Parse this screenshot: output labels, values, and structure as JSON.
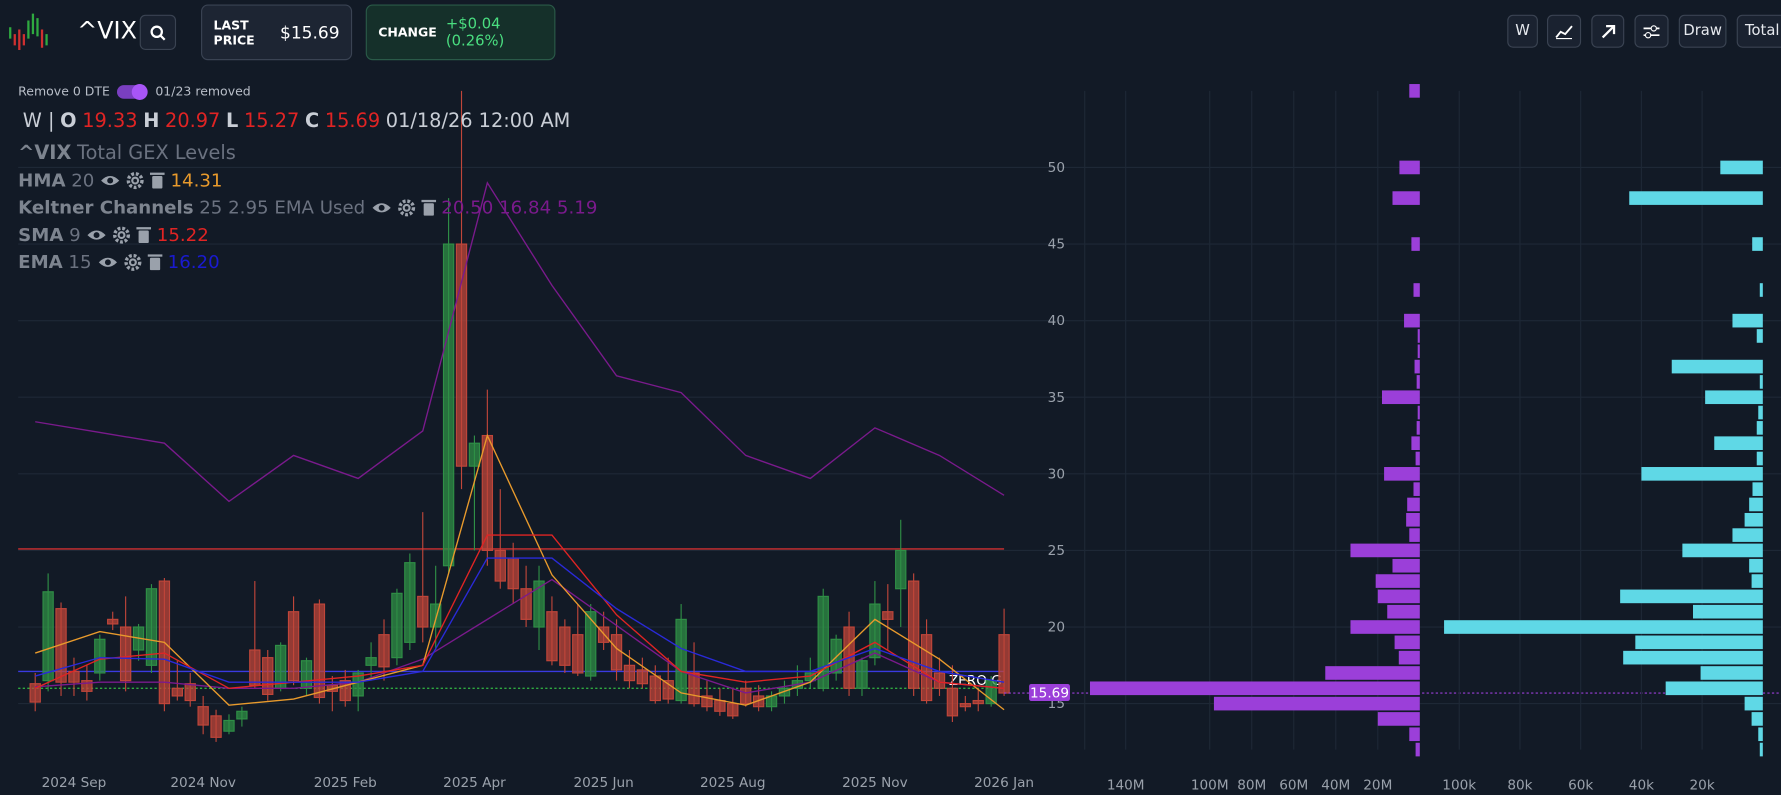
{
  "header": {
    "symbol": "^VIX",
    "last_price_label": "LAST PRICE",
    "last_price": "$15.69",
    "change_label": "CHANGE",
    "change": "+$0.04 (0.26%)",
    "buttons": [
      "W",
      "Draw",
      "Total"
    ],
    "toggle_label": "Remove 0 DTE",
    "removed_note": "01/23 removed"
  },
  "ohlc_legend": {
    "interval": "W |",
    "fields": [
      {
        "label": "O",
        "value": "19.33"
      },
      {
        "label": "H",
        "value": "20.97"
      },
      {
        "label": "L",
        "value": "15.27"
      },
      {
        "label": "C",
        "value": "15.69"
      }
    ],
    "datetime": "01/18/26 12:00 AM"
  },
  "study": {
    "symbol": "^VIX",
    "title": "Total GEX Levels"
  },
  "indicators": [
    {
      "name": "HMA",
      "params": "20",
      "value": "14.31",
      "color": "#e89a2c"
    },
    {
      "name": "Keltner Channels",
      "params": "25 2.95 EMA Used",
      "value": "20.50 16.84 5.19",
      "color": "#7a1a8c"
    },
    {
      "name": "SMA",
      "params": "9",
      "value": "15.22",
      "color": "#e02424"
    },
    {
      "name": "EMA",
      "params": "15",
      "value": "16.20",
      "color": "#1a1ad0"
    }
  ],
  "chart_data": [
    {
      "type": "candlestick",
      "up_color": "#2f8f46",
      "down_color": "#c0463a",
      "categories": [
        null,
        null,
        null,
        "2024 Sep",
        null,
        null,
        null,
        null,
        null,
        null,
        null,
        null,
        null,
        "2024 Nov",
        null,
        null,
        null,
        null,
        null,
        null,
        null,
        null,
        null,
        null,
        "2025 Feb",
        null,
        null,
        null,
        null,
        null,
        null,
        null,
        null,
        null,
        "2025 Apr",
        null,
        null,
        null,
        null,
        null,
        null,
        null,
        null,
        null,
        "2025 Jun",
        null,
        null,
        null,
        null,
        null,
        null,
        null,
        null,
        null,
        "2025 Aug",
        null,
        null,
        null,
        null,
        null,
        null,
        null,
        null,
        null,
        null,
        "2025 Nov",
        null,
        null,
        null,
        null,
        null,
        null,
        null,
        null,
        null,
        "2026 Jan"
      ],
      "open": [
        16.3,
        16.5,
        21.2,
        17.1,
        16.5,
        17.0,
        20.5,
        20.0,
        18.5,
        17.5,
        23.0,
        16.0,
        16.3,
        14.8,
        14.2,
        13.2,
        14.0,
        18.5,
        18.0,
        16.0,
        21.0,
        16.0,
        21.5,
        16.2,
        16.5,
        15.5,
        17.5,
        19.5,
        18.0,
        19.0,
        22.0,
        20.0,
        24.0,
        45.0,
        30.5,
        32.5,
        25.0,
        24.5,
        22.5,
        20.0,
        21.0,
        20.0,
        19.5,
        16.8,
        20.0,
        19.5,
        17.5,
        17.2,
        16.8,
        16.5,
        15.2,
        17.0,
        15.5,
        15.2,
        15.0,
        16.0,
        15.5,
        14.8,
        15.5,
        16.0,
        16.5,
        16.0,
        17.0,
        20.0,
        16.0,
        18.0,
        21.0,
        22.5,
        23.0,
        19.5,
        17.0,
        16.0,
        15.0,
        15.2,
        15.0,
        19.5
      ],
      "high": [
        17.0,
        23.5,
        21.6,
        18.0,
        17.5,
        19.5,
        21.0,
        22.0,
        20.2,
        22.8,
        23.2,
        17.8,
        17.0,
        15.5,
        14.6,
        14.3,
        14.8,
        23.0,
        18.5,
        19.0,
        22.0,
        18.0,
        21.8,
        16.8,
        17.2,
        17.2,
        19.0,
        20.5,
        22.5,
        24.8,
        27.5,
        24.0,
        48.0,
        55.0,
        32.5,
        35.5,
        29.0,
        25.5,
        24.0,
        24.0,
        22.0,
        20.5,
        21.5,
        21.5,
        21.0,
        20.5,
        18.5,
        18.0,
        17.5,
        18.0,
        21.5,
        19.0,
        16.5,
        16.0,
        16.0,
        16.5,
        16.2,
        15.8,
        16.5,
        17.5,
        18.0,
        22.5,
        19.5,
        21.0,
        18.0,
        23.0,
        22.8,
        27.0,
        23.5,
        20.5,
        18.0,
        17.5,
        15.5,
        16.0,
        16.8,
        21.2
      ],
      "low": [
        14.5,
        15.8,
        15.5,
        15.5,
        15.2,
        16.5,
        19.8,
        15.8,
        17.8,
        17.0,
        14.5,
        15.2,
        14.8,
        13.0,
        12.5,
        13.0,
        13.5,
        16.0,
        15.2,
        15.8,
        16.2,
        15.5,
        15.0,
        14.5,
        14.8,
        14.5,
        16.5,
        16.5,
        17.5,
        18.5,
        19.0,
        18.5,
        23.5,
        29.0,
        25.0,
        24.0,
        22.5,
        21.5,
        20.0,
        18.5,
        17.5,
        17.0,
        16.8,
        16.5,
        18.5,
        16.5,
        16.0,
        16.0,
        15.0,
        15.0,
        15.0,
        14.8,
        14.5,
        14.2,
        14.0,
        14.8,
        14.5,
        14.5,
        15.0,
        15.5,
        16.0,
        15.8,
        16.5,
        15.5,
        15.5,
        17.5,
        18.5,
        20.0,
        15.5,
        15.0,
        15.5,
        13.8,
        14.5,
        14.5,
        14.8,
        15.5
      ],
      "close": [
        15.1,
        22.3,
        16.4,
        16.4,
        15.8,
        19.2,
        20.2,
        16.5,
        20.0,
        22.5,
        15.0,
        15.5,
        15.2,
        13.6,
        12.8,
        13.9,
        14.5,
        16.2,
        15.6,
        18.8,
        16.5,
        17.8,
        15.4,
        15.8,
        15.2,
        17.0,
        18.0,
        17.4,
        22.2,
        24.2,
        20.0,
        21.5,
        45.0,
        30.5,
        32.0,
        25.0,
        23.0,
        22.5,
        20.5,
        23.0,
        17.8,
        17.5,
        17.0,
        21.0,
        19.0,
        17.2,
        16.5,
        16.3,
        15.2,
        15.3,
        20.5,
        15.0,
        14.8,
        14.5,
        14.2,
        15.0,
        14.8,
        15.5,
        16.0,
        16.5,
        17.0,
        22.0,
        19.2,
        16.0,
        17.8,
        21.5,
        20.5,
        25.0,
        16.0,
        15.2,
        16.0,
        14.2,
        14.8,
        15.0,
        16.5,
        15.69
      ],
      "overlays": [
        {
          "color": "#7a1a8c",
          "x": [
            0,
            5,
            10,
            15,
            20,
            25,
            30,
            35,
            40,
            45,
            50,
            55,
            60,
            65,
            70,
            75
          ],
          "values": [
            33.4,
            32.7,
            32.0,
            28.2,
            31.2,
            29.7,
            32.8,
            49.0,
            42.3,
            36.4,
            35.3,
            31.2,
            29.7,
            33.0,
            31.2,
            28.6
          ]
        },
        {
          "color": "#7a1a8c",
          "x": [
            0,
            5,
            10,
            15,
            20,
            25,
            30,
            35,
            40,
            45,
            50,
            55,
            60,
            65,
            70,
            75
          ],
          "values": [
            16.1,
            16.4,
            16.4,
            16.0,
            16.0,
            16.4,
            17.9,
            20.5,
            23.1,
            20.1,
            17.1,
            15.7,
            16.4,
            18.3,
            16.4,
            16.0
          ]
        },
        {
          "color": "#e89a2c",
          "x": [
            0,
            5,
            10,
            15,
            20,
            25,
            30,
            35,
            40,
            45,
            50,
            55,
            60,
            65,
            70,
            75
          ],
          "values": [
            18.3,
            19.7,
            19.0,
            14.9,
            15.3,
            16.4,
            17.5,
            32.5,
            23.4,
            18.6,
            15.7,
            14.9,
            16.4,
            20.5,
            17.9,
            14.6
          ]
        },
        {
          "color": "#e02424",
          "x": [
            0,
            5,
            10,
            15,
            20,
            25,
            30,
            35,
            40,
            45,
            50,
            55,
            60,
            65,
            70,
            75
          ],
          "values": [
            16.0,
            17.9,
            18.3,
            16.0,
            16.4,
            16.8,
            17.5,
            26.0,
            26.0,
            20.8,
            17.1,
            16.4,
            16.8,
            19.0,
            16.4,
            16.0
          ]
        },
        {
          "color": "#2a2ad8",
          "x": [
            0,
            5,
            10,
            15,
            20,
            25,
            30,
            35,
            40,
            45,
            50,
            55,
            60,
            65,
            70,
            75
          ],
          "values": [
            16.8,
            18.0,
            17.9,
            16.4,
            16.4,
            16.4,
            17.1,
            24.5,
            24.5,
            21.2,
            18.6,
            17.1,
            17.1,
            18.6,
            17.1,
            16.4
          ]
        }
      ],
      "levels": [
        {
          "value": 25.1,
          "color": "#d03030"
        },
        {
          "value": 17.1,
          "color": "#3a3ae0"
        },
        {
          "value": 16.0,
          "color": "#2faa40",
          "label": "ZERO G"
        }
      ],
      "last_price": 15.69,
      "last_price_color": "#9b3fd9",
      "ylim": [
        12,
        55
      ],
      "yticks": [
        15,
        20,
        25,
        30,
        35,
        40,
        45,
        50
      ],
      "grid": true
    },
    {
      "type": "hbar",
      "strikes": [
        12,
        13,
        14,
        15,
        16,
        17,
        18,
        19,
        20,
        21,
        22,
        23,
        24,
        25,
        26,
        27,
        28,
        29,
        30,
        31,
        32,
        33,
        34,
        35,
        36,
        37,
        38,
        39,
        40,
        42,
        45,
        48,
        50,
        55
      ],
      "ylim": [
        12,
        55
      ],
      "x_reversed": true,
      "xlim": [
        0,
        159500000
      ],
      "xticks": [
        {
          "value": 140000000,
          "label": "140M"
        },
        {
          "value": 100000000,
          "label": "100M"
        },
        {
          "value": 80000000,
          "label": "80M"
        },
        {
          "value": 60000000,
          "label": "60M"
        },
        {
          "value": 40000000,
          "label": "40M"
        },
        {
          "value": 20000000,
          "label": "20M"
        }
      ],
      "x2lim": [
        0,
        110000
      ],
      "x2ticks": [
        {
          "value": 100000,
          "label": "100k"
        },
        {
          "value": 80000,
          "label": "80k"
        },
        {
          "value": 60000,
          "label": "60k"
        },
        {
          "value": 40000,
          "label": "40k"
        },
        {
          "value": 20000,
          "label": "20k"
        }
      ],
      "series": [
        {
          "color": "#9b3fd9",
          "values": [
            2000000,
            5000000,
            20000000,
            98000000,
            157000000,
            45000000,
            10000000,
            12000000,
            33000000,
            15500000,
            20000000,
            21000000,
            13000000,
            33000000,
            5000000,
            6500000,
            6000000,
            3000000,
            17000000,
            2000000,
            4000000,
            1500000,
            1000000,
            18000000,
            1500000,
            2500000,
            1000000,
            1000000,
            7500000,
            3000000,
            4000000,
            13000000,
            9700000,
            5000000
          ]
        },
        {
          "color": "#5fd8e6",
          "axis": "x2",
          "values": [
            1000,
            1500,
            3700,
            6000,
            32000,
            20500,
            46000,
            42000,
            105000,
            23000,
            47000,
            3700,
            4500,
            26500,
            10000,
            6000,
            4500,
            3400,
            40000,
            2000,
            16000,
            2000,
            1500,
            19000,
            1000,
            30000,
            null,
            2000,
            10000,
            1000,
            3500,
            44000,
            14000,
            null
          ]
        }
      ]
    }
  ]
}
